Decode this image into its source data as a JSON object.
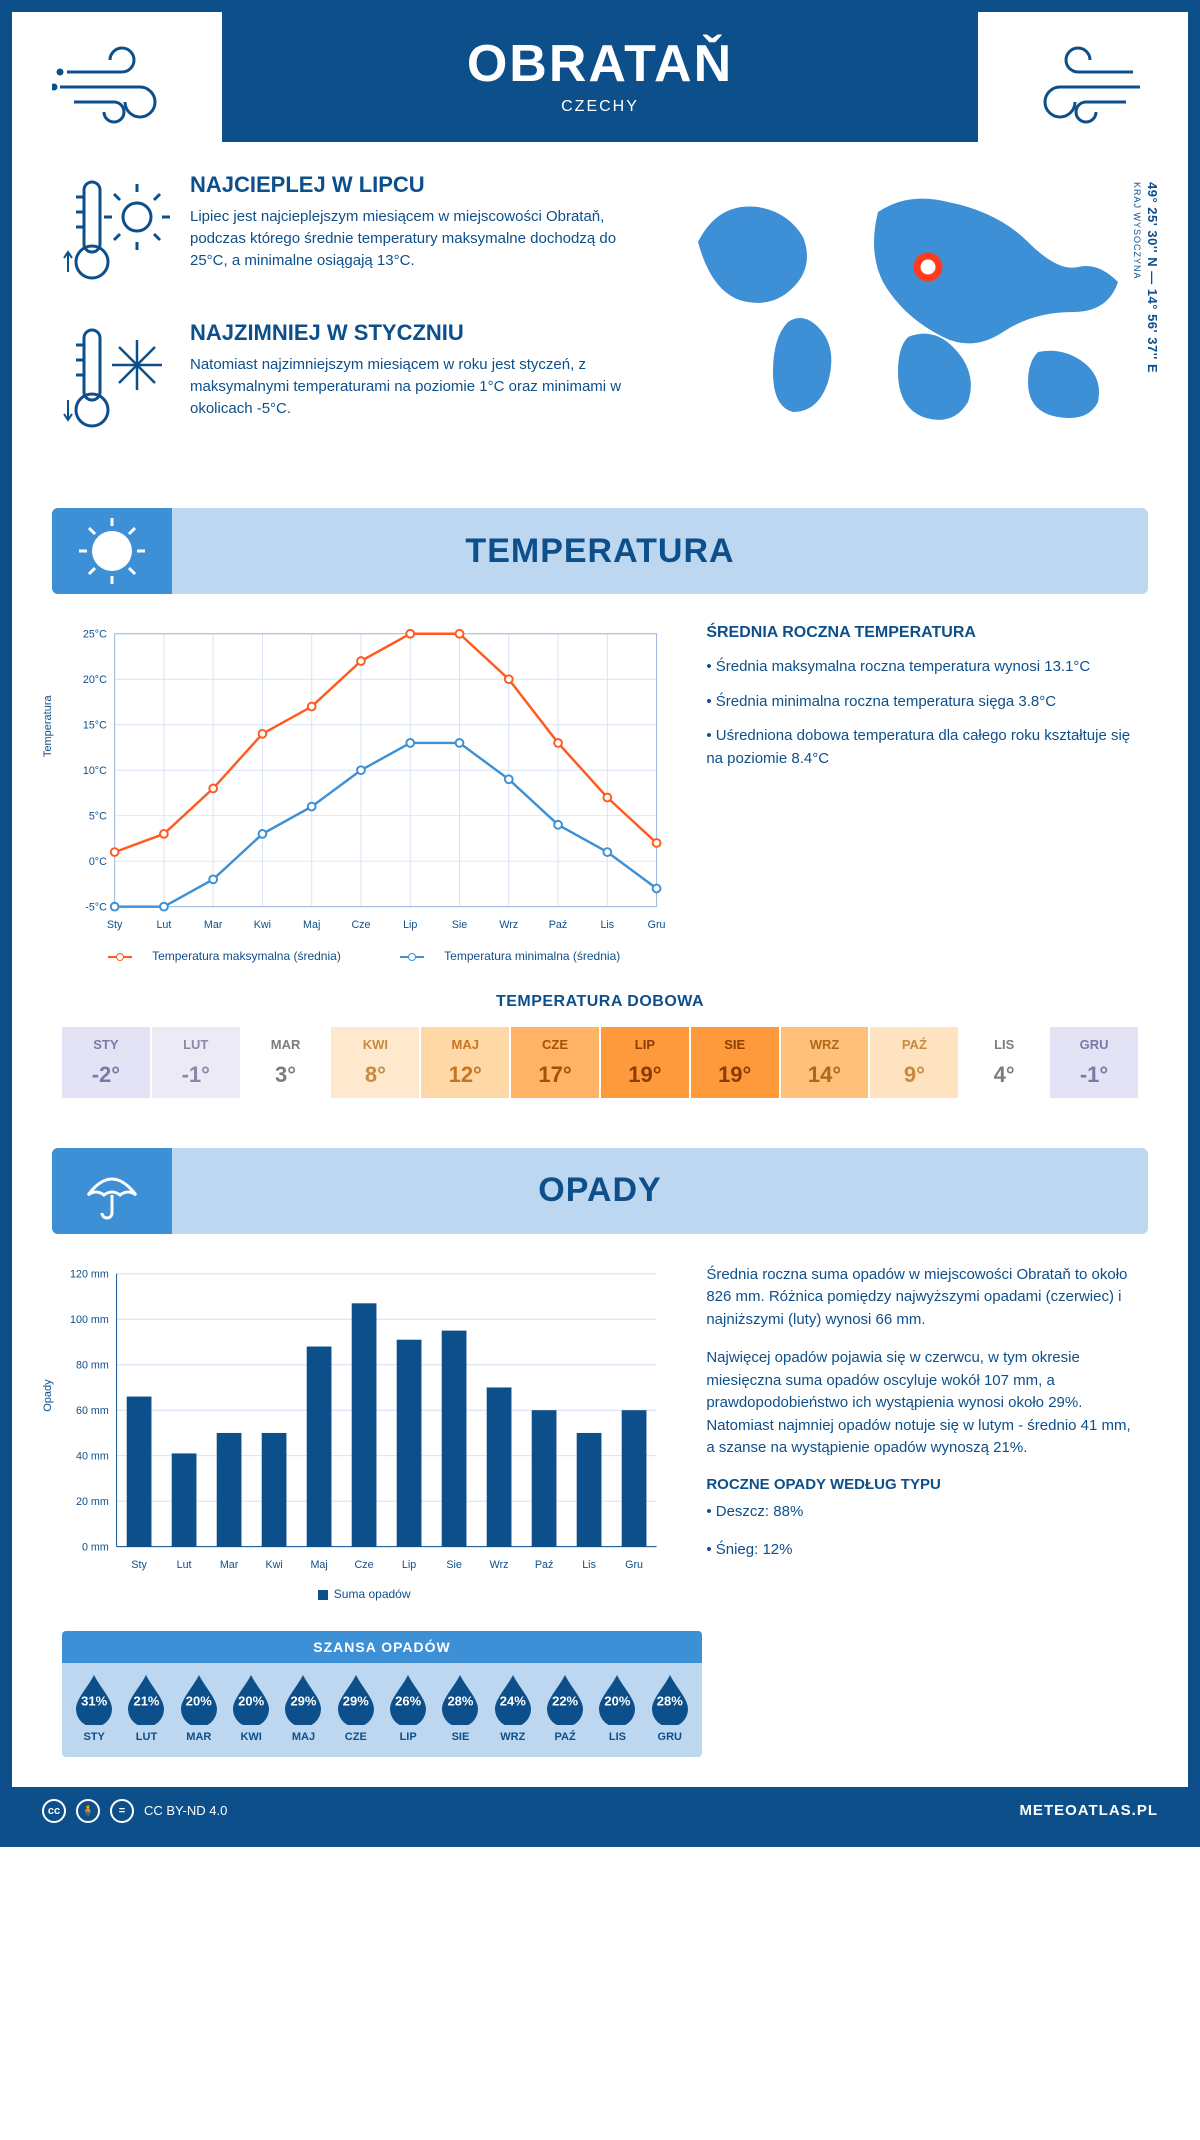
{
  "colors": {
    "primary": "#0d4f8b",
    "banner_bg": "#bdd7f0",
    "banner_corner": "#3d8fd6",
    "line_max": "#ff5a1f",
    "line_min": "#3d8fd6",
    "bar": "#0d4f8b",
    "map_land": "#3d8fd6",
    "marker": "#ff3b1f"
  },
  "header": {
    "city": "OBRATAŇ",
    "country": "CZECHY",
    "coords": "49° 25' 30'' N — 14° 56' 37'' E",
    "region": "KRAJ WYSOCZYNA"
  },
  "intro": {
    "hot": {
      "title": "NAJCIEPLEJ W LIPCU",
      "body": "Lipiec jest najcieplejszym miesiącem w miejscowości Obrataň, podczas którego średnie temperatury maksymalne dochodzą do 25°C, a minimalne osiągają 13°C."
    },
    "cold": {
      "title": "NAJZIMNIEJ W STYCZNIU",
      "body": "Natomiast najzimniejszym miesiącem w roku jest styczeń, z maksymalnymi temperaturami na poziomie 1°C oraz minimami w okolicach -5°C."
    }
  },
  "temperature": {
    "section_title": "TEMPERATURA",
    "y_label": "Temperatura",
    "months": [
      "Sty",
      "Lut",
      "Mar",
      "Kwi",
      "Maj",
      "Cze",
      "Lip",
      "Sie",
      "Wrz",
      "Paź",
      "Lis",
      "Gru"
    ],
    "max_series": [
      1,
      3,
      8,
      14,
      17,
      22,
      25,
      25,
      20,
      13,
      7,
      2
    ],
    "min_series": [
      -5,
      -5,
      -2,
      3,
      6,
      10,
      13,
      13,
      9,
      4,
      1,
      -3
    ],
    "ylim": [
      -5,
      25
    ],
    "ytick_step": 5,
    "ytick_labels": [
      "-5°C",
      "0°C",
      "5°C",
      "10°C",
      "15°C",
      "20°C",
      "25°C"
    ],
    "legend_max": "Temperatura maksymalna (średnia)",
    "legend_min": "Temperatura minimalna (średnia)",
    "avg_title": "ŚREDNIA ROCZNA TEMPERATURA",
    "avg_bullets": [
      "• Średnia maksymalna roczna temperatura wynosi 13.1°C",
      "• Średnia minimalna roczna temperatura sięga 3.8°C",
      "• Uśredniona dobowa temperatura dla całego roku kształtuje się na poziomie 8.4°C"
    ]
  },
  "daily": {
    "title": "TEMPERATURA DOBOWA",
    "months": [
      "STY",
      "LUT",
      "MAR",
      "KWI",
      "MAJ",
      "CZE",
      "LIP",
      "SIE",
      "WRZ",
      "PAŹ",
      "LIS",
      "GRU"
    ],
    "values": [
      "-2°",
      "-1°",
      "3°",
      "8°",
      "12°",
      "17°",
      "19°",
      "19°",
      "14°",
      "9°",
      "4°",
      "-1°"
    ],
    "cell_bg": [
      "#e3e3f5",
      "#eceaf4",
      "#ffffff",
      "#ffe9ce",
      "#ffd8a8",
      "#ffb366",
      "#ff9a3c",
      "#ff9a3c",
      "#ffc07a",
      "#ffe2bf",
      "#ffffff",
      "#e3e3f5"
    ],
    "cell_fg": [
      "#7a7aa8",
      "#8a88a6",
      "#7d7d7d",
      "#c88a3d",
      "#c8751f",
      "#a65200",
      "#8a3d00",
      "#8a3d00",
      "#b06818",
      "#c88a3d",
      "#7d7d7d",
      "#7a7aa8"
    ]
  },
  "precip": {
    "section_title": "OPADY",
    "y_label": "Opady",
    "months": [
      "Sty",
      "Lut",
      "Mar",
      "Kwi",
      "Maj",
      "Cze",
      "Lip",
      "Sie",
      "Wrz",
      "Paź",
      "Lis",
      "Gru"
    ],
    "values_mm": [
      66,
      41,
      50,
      50,
      88,
      107,
      91,
      95,
      70,
      60,
      50,
      60
    ],
    "ylim": [
      0,
      120
    ],
    "ytick_step": 20,
    "ytick_labels": [
      "0 mm",
      "20 mm",
      "40 mm",
      "60 mm",
      "80 mm",
      "100 mm",
      "120 mm"
    ],
    "legend": "Suma opadów",
    "para1": "Średnia roczna suma opadów w miejscowości Obrataň to około 826 mm. Różnica pomiędzy najwyższymi opadami (czerwiec) i najniższymi (luty) wynosi 66 mm.",
    "para2": "Najwięcej opadów pojawia się w czerwcu, w tym okresie miesięczna suma opadów oscyluje wokół 107 mm, a prawdopodobieństwo ich wystąpienia wynosi około 29%. Natomiast najmniej opadów notuje się w lutym - średnio 41 mm, a szanse na wystąpienie opadów wynoszą 21%.",
    "type_title": "ROCZNE OPADY WEDŁUG TYPU",
    "type_bullets": [
      "• Deszcz: 88%",
      "• Śnieg: 12%"
    ]
  },
  "chance": {
    "title": "SZANSA OPADÓW",
    "months": [
      "STY",
      "LUT",
      "MAR",
      "KWI",
      "MAJ",
      "CZE",
      "LIP",
      "SIE",
      "WRZ",
      "PAŹ",
      "LIS",
      "GRU"
    ],
    "pct": [
      "31%",
      "21%",
      "20%",
      "20%",
      "29%",
      "29%",
      "26%",
      "28%",
      "24%",
      "22%",
      "20%",
      "28%"
    ],
    "drop_color": "#0d4f8b"
  },
  "footer": {
    "license": "CC BY-ND 4.0",
    "site": "METEOATLAS.PL"
  }
}
